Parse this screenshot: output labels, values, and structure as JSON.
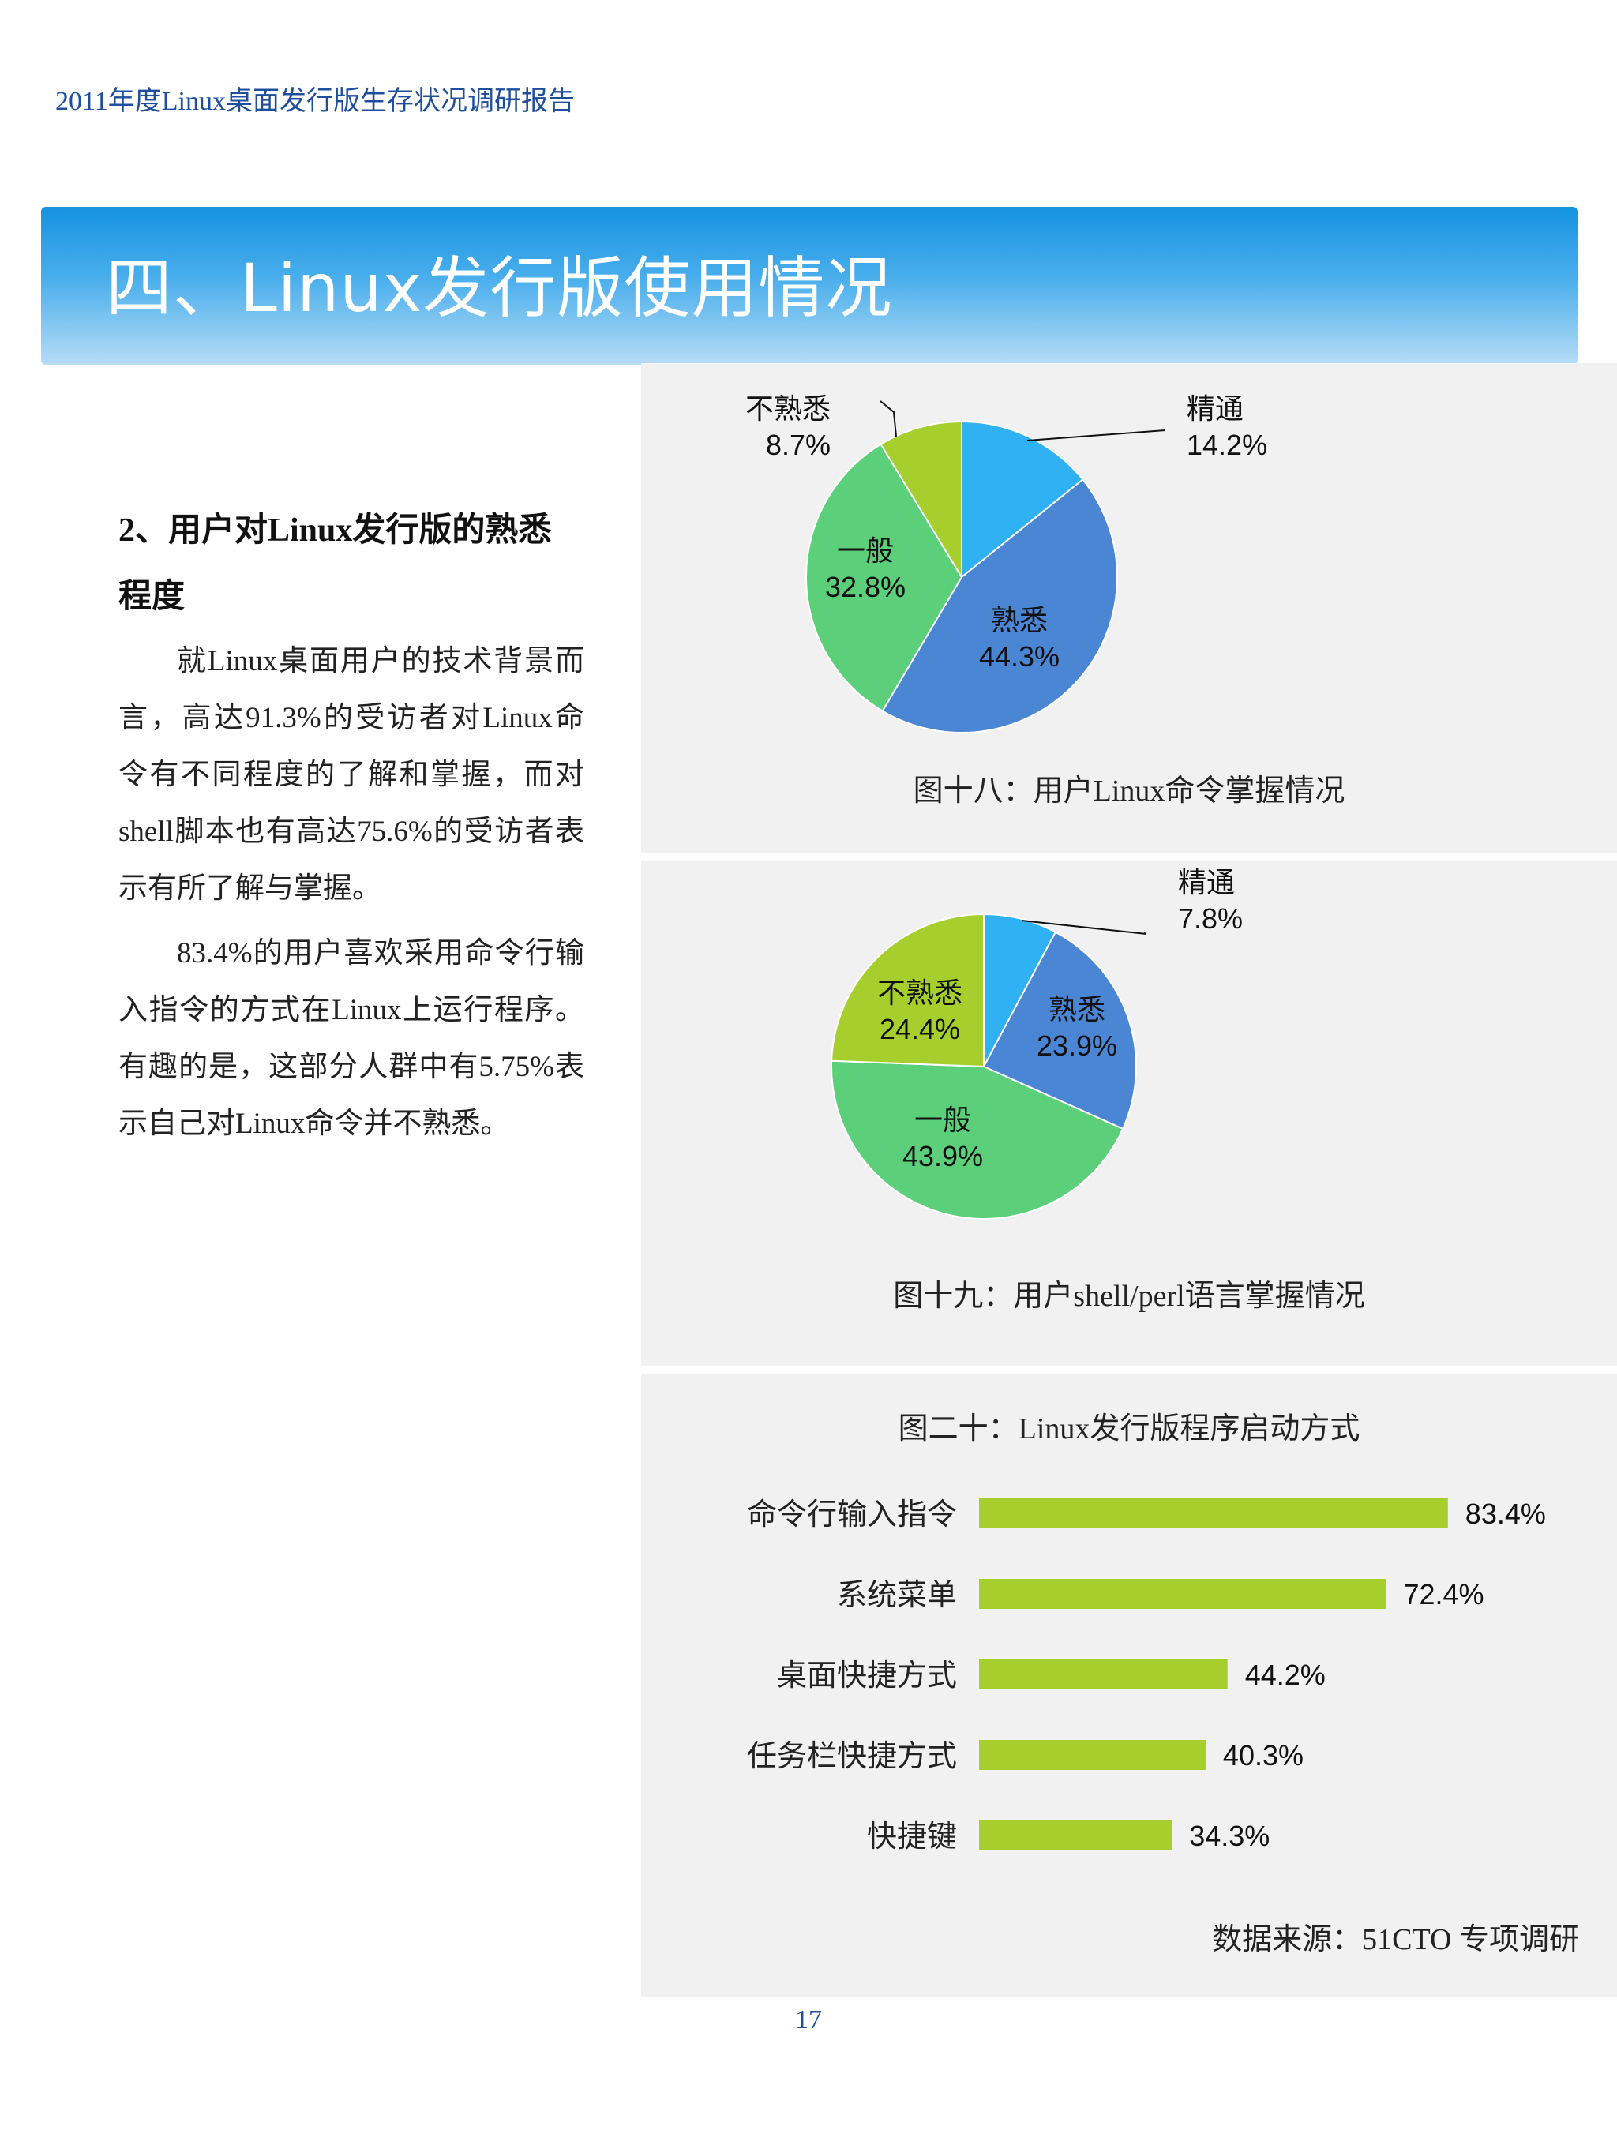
{
  "header": {
    "running_title": "2011年度Linux桌面发行版生存状况调研报告"
  },
  "banner": {
    "title": "四、Linux发行版使用情况"
  },
  "section": {
    "heading": "2、用户对Linux发行版的熟悉程度",
    "paragraphs": [
      "就Linux桌面用户的技术背景而言，高达91.3%的受访者对Linux命令有不同程度的了解和掌握，而对shell脚本也有高达75.6%的受访者表示有所了解与掌握。",
      "83.4%的用户喜欢采用命令行输入指令的方式在Linux上运行程序。有趣的是，这部分人群中有5.75%表示自己对Linux命令并不熟悉。"
    ]
  },
  "charts": {
    "fig18": {
      "caption": "图十八：用户Linux命令掌握情况"
    },
    "fig19": {
      "caption": "图十九：用户shell/perl语言掌握情况"
    },
    "fig20": {
      "caption": "图二十：Linux发行版程序启动方式",
      "source": "数据来源：51CTO 专项调研"
    }
  },
  "colors": {
    "light_blue": "#2fb1f4",
    "dark_blue": "#4a86d4",
    "green": "#5ccf7b",
    "lime": "#a6cf2e",
    "bar": "#a6cf2e"
  },
  "chart_data": [
    {
      "type": "pie",
      "title": "图十八：用户Linux命令掌握情况",
      "slices": [
        {
          "label": "精通",
          "value": 14.2,
          "display": "14.2%",
          "color": "#2fb1f4"
        },
        {
          "label": "熟悉",
          "value": 44.3,
          "display": "44.3%",
          "color": "#4a86d4"
        },
        {
          "label": "一般",
          "value": 32.8,
          "display": "32.8%",
          "color": "#5ccf7b"
        },
        {
          "label": "不熟悉",
          "value": 8.7,
          "display": "8.7%",
          "color": "#a6cf2e"
        }
      ]
    },
    {
      "type": "pie",
      "title": "图十九：用户shell/perl语言掌握情况",
      "slices": [
        {
          "label": "精通",
          "value": 7.8,
          "display": "7.8%",
          "color": "#2fb1f4"
        },
        {
          "label": "熟悉",
          "value": 23.9,
          "display": "23.9%",
          "color": "#4a86d4"
        },
        {
          "label": "一般",
          "value": 43.9,
          "display": "43.9%",
          "color": "#5ccf7b"
        },
        {
          "label": "不熟悉",
          "value": 24.4,
          "display": "24.4%",
          "color": "#a6cf2e"
        }
      ]
    },
    {
      "type": "bar",
      "orientation": "horizontal",
      "title": "图二十：Linux发行版程序启动方式",
      "categories": [
        "命令行输入指令",
        "系统菜单",
        "桌面快捷方式",
        "任务栏快捷方式",
        "快捷键"
      ],
      "values": [
        83.4,
        72.4,
        44.2,
        40.3,
        34.3
      ],
      "display": [
        "83.4%",
        "72.4%",
        "44.2%",
        "40.3%",
        "34.3%"
      ],
      "color": "#a6cf2e"
    }
  ],
  "page": {
    "number": "17"
  }
}
